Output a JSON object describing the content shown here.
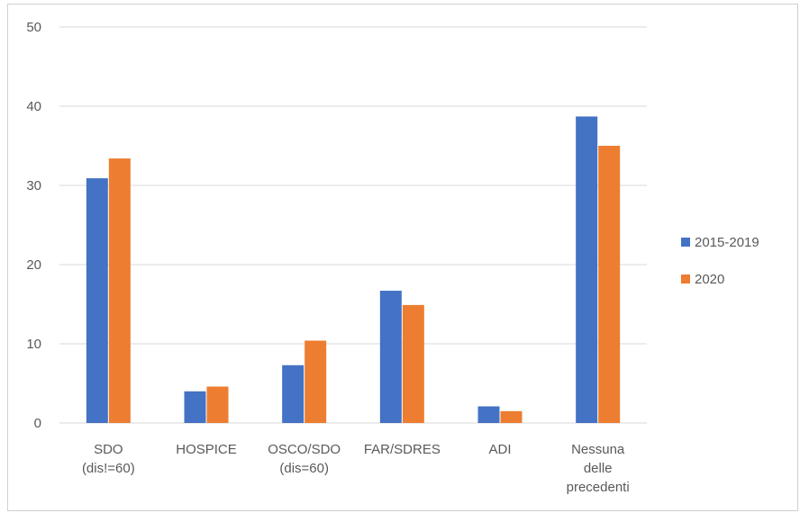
{
  "chart_data": {
    "type": "bar",
    "title": "",
    "xlabel": "",
    "ylabel": "",
    "ylim": [
      0,
      50
    ],
    "yticks": [
      0,
      10,
      20,
      30,
      40,
      50
    ],
    "grid": true,
    "legend_position": "right",
    "categories": [
      [
        "SDO",
        "(dis!=60)"
      ],
      [
        "HOSPICE"
      ],
      [
        "OSCO/SDO",
        "(dis=60)"
      ],
      [
        "FAR/SDRES"
      ],
      [
        "ADI"
      ],
      [
        "Nessuna",
        "delle",
        "precedenti"
      ]
    ],
    "series": [
      {
        "name": "2015-2019",
        "color": "#4472c4",
        "values": [
          30.9,
          4.0,
          7.3,
          16.7,
          2.1,
          38.7
        ]
      },
      {
        "name": "2020",
        "color": "#ed7d31",
        "values": [
          33.4,
          4.6,
          10.4,
          14.9,
          1.5,
          35.0
        ]
      }
    ]
  }
}
